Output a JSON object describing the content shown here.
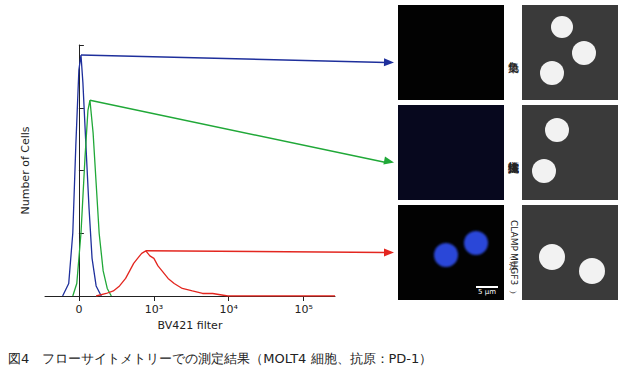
{
  "chart_data": {
    "type": "line",
    "xlabel": "BV421 filter",
    "ylabel": "Number of Cells",
    "xlim": [
      -250,
      262144
    ],
    "xticks": [
      0,
      {
        "value": 1000,
        "label": "10³"
      },
      {
        "value": 10000,
        "label": "10⁴"
      },
      {
        "value": 100000,
        "label": "10⁵"
      }
    ],
    "ylim": [
      0,
      100
    ],
    "yticks": [
      0,
      25,
      50,
      75,
      100
    ],
    "grid": false,
    "tick_labels": "x",
    "series": [
      {
        "color": "#1e2f9c",
        "x": [
          -105,
          -64,
          -38,
          -19,
          0,
          13,
          25,
          44,
          64,
          84,
          112,
          150
        ],
        "values": [
          0,
          5,
          25,
          60,
          90,
          96,
          85,
          60,
          35,
          15,
          4,
          0
        ]
      },
      {
        "color": "#20a838",
        "x": [
          -38,
          -13,
          13,
          38,
          57,
          70,
          91,
          112,
          134,
          165,
          199,
          236
        ],
        "values": [
          0,
          5,
          25,
          55,
          74,
          78,
          65,
          45,
          25,
          10,
          3,
          0
        ]
      },
      {
        "color": "#e3261f",
        "x": [
          112,
          190,
          256,
          323,
          400,
          459,
          524,
          596,
          680,
          776,
          881,
          1000,
          1135,
          1289,
          1555,
          1877,
          2412,
          3290,
          4500,
          6140,
          9800,
          50000,
          262144
        ],
        "values": [
          0,
          1,
          2,
          4,
          7,
          10,
          13,
          15,
          17,
          18,
          16,
          15,
          12,
          10,
          7,
          5,
          3,
          2,
          1,
          1,
          0,
          0,
          0
        ]
      }
    ]
  },
  "panels": [
    {
      "label": [
        "無染色"
      ]
    },
    {
      "label": [
        "蛍光標識抗体法"
      ]
    },
    {
      "label": [
        "CLAMP 法",
        "（MUGF3）"
      ],
      "scale_bar": "5 μm"
    }
  ],
  "caption": "図4　フローサイトメトリーでの測定結果（MOLT4 細胞、抗原：PD-1）"
}
